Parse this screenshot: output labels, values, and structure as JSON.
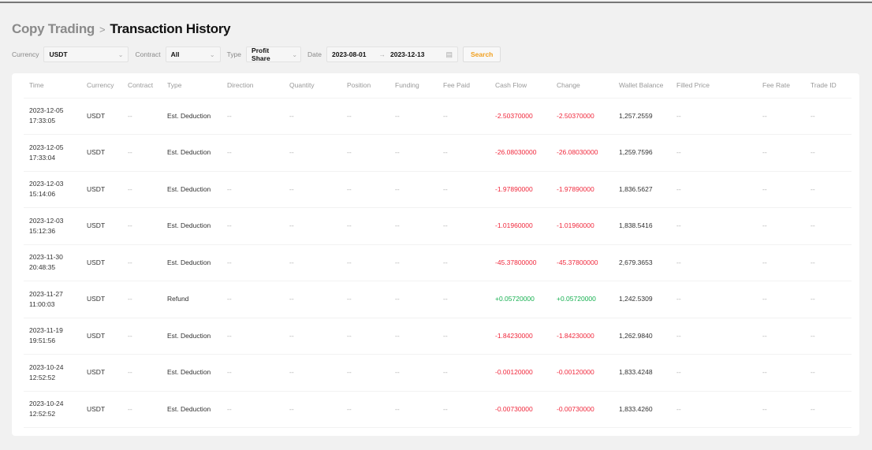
{
  "breadcrumb": {
    "parent": "Copy Trading",
    "separator": ">",
    "current": "Transaction History"
  },
  "filters": {
    "currency_label": "Currency",
    "currency_value": "USDT",
    "contract_label": "Contract",
    "contract_value": "All",
    "type_label": "Type",
    "type_value": "Profit Share",
    "date_label": "Date",
    "date_from": "2023-08-01",
    "date_to": "2023-12-13",
    "search_label": "Search"
  },
  "colors": {
    "negative": "#f0283c",
    "positive": "#16b050",
    "accent": "#f0a020"
  },
  "table": {
    "columns": [
      "Time",
      "Currency",
      "Contract",
      "Type",
      "Direction",
      "Quantity",
      "Position",
      "Funding",
      "Fee Paid",
      "Cash Flow",
      "Change",
      "Wallet Balance",
      "Filled Price",
      "Fee Rate",
      "Trade ID"
    ],
    "rows": [
      {
        "date": "2023-12-05",
        "time": "17:33:05",
        "currency": "USDT",
        "contract": "--",
        "type": "Est. Deduction",
        "direction": "--",
        "quantity": "--",
        "position": "--",
        "funding": "--",
        "fee_paid": "--",
        "cash_flow": "-2.50370000",
        "change": "-2.50370000",
        "wallet_balance": "1,257.2559",
        "filled_price": "--",
        "fee_rate": "--",
        "trade_id": "--",
        "sign": "neg"
      },
      {
        "date": "2023-12-05",
        "time": "17:33:04",
        "currency": "USDT",
        "contract": "--",
        "type": "Est. Deduction",
        "direction": "--",
        "quantity": "--",
        "position": "--",
        "funding": "--",
        "fee_paid": "--",
        "cash_flow": "-26.08030000",
        "change": "-26.08030000",
        "wallet_balance": "1,259.7596",
        "filled_price": "--",
        "fee_rate": "--",
        "trade_id": "--",
        "sign": "neg"
      },
      {
        "date": "2023-12-03",
        "time": "15:14:06",
        "currency": "USDT",
        "contract": "--",
        "type": "Est. Deduction",
        "direction": "--",
        "quantity": "--",
        "position": "--",
        "funding": "--",
        "fee_paid": "--",
        "cash_flow": "-1.97890000",
        "change": "-1.97890000",
        "wallet_balance": "1,836.5627",
        "filled_price": "--",
        "fee_rate": "--",
        "trade_id": "--",
        "sign": "neg"
      },
      {
        "date": "2023-12-03",
        "time": "15:12:36",
        "currency": "USDT",
        "contract": "--",
        "type": "Est. Deduction",
        "direction": "--",
        "quantity": "--",
        "position": "--",
        "funding": "--",
        "fee_paid": "--",
        "cash_flow": "-1.01960000",
        "change": "-1.01960000",
        "wallet_balance": "1,838.5416",
        "filled_price": "--",
        "fee_rate": "--",
        "trade_id": "--",
        "sign": "neg"
      },
      {
        "date": "2023-11-30",
        "time": "20:48:35",
        "currency": "USDT",
        "contract": "--",
        "type": "Est. Deduction",
        "direction": "--",
        "quantity": "--",
        "position": "--",
        "funding": "--",
        "fee_paid": "--",
        "cash_flow": "-45.37800000",
        "change": "-45.37800000",
        "wallet_balance": "2,679.3653",
        "filled_price": "--",
        "fee_rate": "--",
        "trade_id": "--",
        "sign": "neg"
      },
      {
        "date": "2023-11-27",
        "time": "11:00:03",
        "currency": "USDT",
        "contract": "--",
        "type": "Refund",
        "direction": "--",
        "quantity": "--",
        "position": "--",
        "funding": "--",
        "fee_paid": "--",
        "cash_flow": "+0.05720000",
        "change": "+0.05720000",
        "wallet_balance": "1,242.5309",
        "filled_price": "--",
        "fee_rate": "--",
        "trade_id": "--",
        "sign": "pos"
      },
      {
        "date": "2023-11-19",
        "time": "19:51:56",
        "currency": "USDT",
        "contract": "--",
        "type": "Est. Deduction",
        "direction": "--",
        "quantity": "--",
        "position": "--",
        "funding": "--",
        "fee_paid": "--",
        "cash_flow": "-1.84230000",
        "change": "-1.84230000",
        "wallet_balance": "1,262.9840",
        "filled_price": "--",
        "fee_rate": "--",
        "trade_id": "--",
        "sign": "neg"
      },
      {
        "date": "2023-10-24",
        "time": "12:52:52",
        "currency": "USDT",
        "contract": "--",
        "type": "Est. Deduction",
        "direction": "--",
        "quantity": "--",
        "position": "--",
        "funding": "--",
        "fee_paid": "--",
        "cash_flow": "-0.00120000",
        "change": "-0.00120000",
        "wallet_balance": "1,833.4248",
        "filled_price": "--",
        "fee_rate": "--",
        "trade_id": "--",
        "sign": "neg"
      },
      {
        "date": "2023-10-24",
        "time": "12:52:52",
        "currency": "USDT",
        "contract": "--",
        "type": "Est. Deduction",
        "direction": "--",
        "quantity": "--",
        "position": "--",
        "funding": "--",
        "fee_paid": "--",
        "cash_flow": "-0.00730000",
        "change": "-0.00730000",
        "wallet_balance": "1,833.4260",
        "filled_price": "--",
        "fee_rate": "--",
        "trade_id": "--",
        "sign": "neg"
      }
    ]
  }
}
